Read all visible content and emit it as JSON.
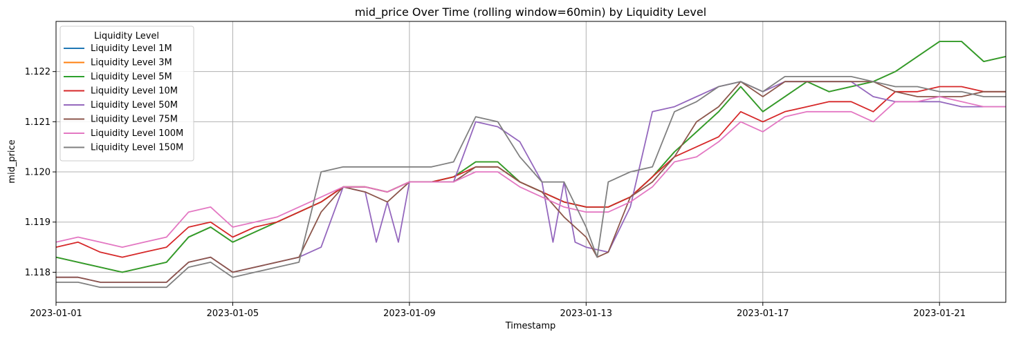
{
  "chart_data": {
    "type": "line",
    "title": "mid_price Over Time (rolling window=60min) by Liquidity Level",
    "xlabel": "Timestamp",
    "ylabel": "mid_price",
    "x_ticks": [
      "2023-01-01",
      "2023-01-05",
      "2023-01-09",
      "2023-01-13",
      "2023-01-17",
      "2023-01-21"
    ],
    "y_ticks": [
      "1.118",
      "1.119",
      "1.120",
      "1.121",
      "1.122"
    ],
    "xlim": [
      "2023-01-01 00:00",
      "2023-01-22 12:00"
    ],
    "ylim": [
      1.1174,
      1.123
    ],
    "grid": true,
    "legend": {
      "title": "Liquidity Level",
      "placement": "top-left"
    },
    "series": [
      {
        "name": "Liquidity Level 1M",
        "color": "#1f77b4",
        "x": [
          "2023-01-01 00:00",
          "2023-01-01 12:00",
          "2023-01-02 00:00",
          "2023-01-02 12:00",
          "2023-01-03 00:00",
          "2023-01-03 12:00",
          "2023-01-04 00:00",
          "2023-01-04 12:00",
          "2023-01-05 00:00",
          "2023-01-05 12:00",
          "2023-01-06 00:00",
          "2023-01-06 12:00",
          "2023-01-07 00:00",
          "2023-01-07 12:00",
          "2023-01-08 00:00",
          "2023-01-08 12:00",
          "2023-01-09 00:00",
          "2023-01-09 12:00",
          "2023-01-10 00:00",
          "2023-01-10 12:00",
          "2023-01-11 00:00",
          "2023-01-11 12:00",
          "2023-01-12 00:00",
          "2023-01-12 12:00",
          "2023-01-13 00:00",
          "2023-01-13 12:00",
          "2023-01-14 00:00",
          "2023-01-14 12:00",
          "2023-01-15 00:00",
          "2023-01-15 12:00",
          "2023-01-16 00:00",
          "2023-01-16 12:00",
          "2023-01-17 00:00",
          "2023-01-17 12:00",
          "2023-01-18 00:00",
          "2023-01-18 12:00",
          "2023-01-19 00:00",
          "2023-01-19 12:00",
          "2023-01-20 00:00",
          "2023-01-20 12:00",
          "2023-01-21 00:00",
          "2023-01-21 12:00",
          "2023-01-22 00:00",
          "2023-01-22 12:00"
        ],
        "y": [
          1.1183,
          1.1182,
          1.1181,
          1.118,
          1.1181,
          1.1182,
          1.1187,
          1.1189,
          1.1186,
          1.1188,
          1.119,
          1.1192,
          1.1194,
          1.1197,
          1.1197,
          1.1196,
          1.1198,
          1.1198,
          1.1199,
          1.1202,
          1.1202,
          1.1198,
          1.1196,
          1.1194,
          1.1193,
          1.1193,
          1.1195,
          1.1199,
          1.1204,
          1.1208,
          1.1212,
          1.1217,
          1.1212,
          1.1215,
          1.1218,
          1.1216,
          1.1217,
          1.1218,
          1.122,
          1.1223,
          1.1226,
          1.1226,
          1.1222,
          1.1223
        ]
      },
      {
        "name": "Liquidity Level 3M",
        "color": "#ff7f0e",
        "x": [
          "2023-01-01 00:00",
          "2023-01-01 12:00",
          "2023-01-02 00:00",
          "2023-01-02 12:00",
          "2023-01-03 00:00",
          "2023-01-03 12:00",
          "2023-01-04 00:00",
          "2023-01-04 12:00",
          "2023-01-05 00:00",
          "2023-01-05 12:00",
          "2023-01-06 00:00",
          "2023-01-06 12:00",
          "2023-01-07 00:00",
          "2023-01-07 12:00",
          "2023-01-08 00:00",
          "2023-01-08 12:00",
          "2023-01-09 00:00",
          "2023-01-09 12:00",
          "2023-01-10 00:00",
          "2023-01-10 12:00",
          "2023-01-11 00:00",
          "2023-01-11 12:00",
          "2023-01-12 00:00",
          "2023-01-12 12:00",
          "2023-01-13 00:00",
          "2023-01-13 12:00",
          "2023-01-14 00:00",
          "2023-01-14 12:00",
          "2023-01-15 00:00",
          "2023-01-15 12:00",
          "2023-01-16 00:00",
          "2023-01-16 12:00",
          "2023-01-17 00:00",
          "2023-01-17 12:00",
          "2023-01-18 00:00",
          "2023-01-18 12:00",
          "2023-01-19 00:00",
          "2023-01-19 12:00",
          "2023-01-20 00:00",
          "2023-01-20 12:00",
          "2023-01-21 00:00",
          "2023-01-21 12:00",
          "2023-01-22 00:00",
          "2023-01-22 12:00"
        ],
        "y": [
          1.1183,
          1.1182,
          1.1181,
          1.118,
          1.1181,
          1.1182,
          1.1187,
          1.1189,
          1.1186,
          1.1188,
          1.119,
          1.1192,
          1.1194,
          1.1197,
          1.1197,
          1.1196,
          1.1198,
          1.1198,
          1.1199,
          1.1202,
          1.1202,
          1.1198,
          1.1196,
          1.1194,
          1.1193,
          1.1193,
          1.1195,
          1.1199,
          1.1204,
          1.1208,
          1.1212,
          1.1217,
          1.1212,
          1.1215,
          1.1218,
          1.1216,
          1.1217,
          1.1218,
          1.122,
          1.1223,
          1.1226,
          1.1226,
          1.1222,
          1.1223
        ]
      },
      {
        "name": "Liquidity Level 5M",
        "color": "#2ca02c",
        "x": [
          "2023-01-01 00:00",
          "2023-01-01 12:00",
          "2023-01-02 00:00",
          "2023-01-02 12:00",
          "2023-01-03 00:00",
          "2023-01-03 12:00",
          "2023-01-04 00:00",
          "2023-01-04 12:00",
          "2023-01-05 00:00",
          "2023-01-05 12:00",
          "2023-01-06 00:00",
          "2023-01-06 12:00",
          "2023-01-07 00:00",
          "2023-01-07 12:00",
          "2023-01-08 00:00",
          "2023-01-08 12:00",
          "2023-01-09 00:00",
          "2023-01-09 12:00",
          "2023-01-10 00:00",
          "2023-01-10 12:00",
          "2023-01-11 00:00",
          "2023-01-11 12:00",
          "2023-01-12 00:00",
          "2023-01-12 12:00",
          "2023-01-13 00:00",
          "2023-01-13 12:00",
          "2023-01-14 00:00",
          "2023-01-14 12:00",
          "2023-01-15 00:00",
          "2023-01-15 12:00",
          "2023-01-16 00:00",
          "2023-01-16 12:00",
          "2023-01-17 00:00",
          "2023-01-17 12:00",
          "2023-01-18 00:00",
          "2023-01-18 12:00",
          "2023-01-19 00:00",
          "2023-01-19 12:00",
          "2023-01-20 00:00",
          "2023-01-20 12:00",
          "2023-01-21 00:00",
          "2023-01-21 12:00",
          "2023-01-22 00:00",
          "2023-01-22 12:00"
        ],
        "y": [
          1.1183,
          1.1182,
          1.1181,
          1.118,
          1.1181,
          1.1182,
          1.1187,
          1.1189,
          1.1186,
          1.1188,
          1.119,
          1.1192,
          1.1194,
          1.1197,
          1.1197,
          1.1196,
          1.1198,
          1.1198,
          1.1199,
          1.1202,
          1.1202,
          1.1198,
          1.1196,
          1.1194,
          1.1193,
          1.1193,
          1.1195,
          1.1199,
          1.1204,
          1.1208,
          1.1212,
          1.1217,
          1.1212,
          1.1215,
          1.1218,
          1.1216,
          1.1217,
          1.1218,
          1.122,
          1.1223,
          1.1226,
          1.1226,
          1.1222,
          1.1223
        ]
      },
      {
        "name": "Liquidity Level 10M",
        "color": "#d62728",
        "x": [
          "2023-01-01 00:00",
          "2023-01-01 12:00",
          "2023-01-02 00:00",
          "2023-01-02 12:00",
          "2023-01-03 00:00",
          "2023-01-03 12:00",
          "2023-01-04 00:00",
          "2023-01-04 12:00",
          "2023-01-05 00:00",
          "2023-01-05 12:00",
          "2023-01-06 00:00",
          "2023-01-06 12:00",
          "2023-01-07 00:00",
          "2023-01-07 12:00",
          "2023-01-08 00:00",
          "2023-01-08 12:00",
          "2023-01-09 00:00",
          "2023-01-09 12:00",
          "2023-01-10 00:00",
          "2023-01-10 12:00",
          "2023-01-11 00:00",
          "2023-01-11 12:00",
          "2023-01-12 00:00",
          "2023-01-12 12:00",
          "2023-01-13 00:00",
          "2023-01-13 12:00",
          "2023-01-14 00:00",
          "2023-01-14 12:00",
          "2023-01-15 00:00",
          "2023-01-15 12:00",
          "2023-01-16 00:00",
          "2023-01-16 12:00",
          "2023-01-17 00:00",
          "2023-01-17 12:00",
          "2023-01-18 00:00",
          "2023-01-18 12:00",
          "2023-01-19 00:00",
          "2023-01-19 12:00",
          "2023-01-20 00:00",
          "2023-01-20 12:00",
          "2023-01-21 00:00",
          "2023-01-21 12:00",
          "2023-01-22 00:00",
          "2023-01-22 12:00"
        ],
        "y": [
          1.1185,
          1.1186,
          1.1184,
          1.1183,
          1.1184,
          1.1185,
          1.1189,
          1.119,
          1.1187,
          1.1189,
          1.119,
          1.1192,
          1.1194,
          1.1197,
          1.1197,
          1.1196,
          1.1198,
          1.1198,
          1.1199,
          1.1201,
          1.1201,
          1.1198,
          1.1196,
          1.1194,
          1.1193,
          1.1193,
          1.1195,
          1.1199,
          1.1203,
          1.1205,
          1.1207,
          1.1212,
          1.121,
          1.1212,
          1.1213,
          1.1214,
          1.1214,
          1.1212,
          1.1216,
          1.1216,
          1.1217,
          1.1217,
          1.1216,
          1.1216
        ]
      },
      {
        "name": "Liquidity Level 50M",
        "color": "#9467bd",
        "x": [
          "2023-01-01 00:00",
          "2023-01-01 12:00",
          "2023-01-02 00:00",
          "2023-01-02 12:00",
          "2023-01-03 00:00",
          "2023-01-03 12:00",
          "2023-01-04 00:00",
          "2023-01-04 12:00",
          "2023-01-05 00:00",
          "2023-01-05 12:00",
          "2023-01-06 00:00",
          "2023-01-06 12:00",
          "2023-01-07 00:00",
          "2023-01-07 12:00",
          "2023-01-08 00:00",
          "2023-01-08 06:00",
          "2023-01-08 12:00",
          "2023-01-08 18:00",
          "2023-01-09 00:00",
          "2023-01-09 12:00",
          "2023-01-10 00:00",
          "2023-01-10 12:00",
          "2023-01-11 00:00",
          "2023-01-11 12:00",
          "2023-01-12 00:00",
          "2023-01-12 06:00",
          "2023-01-12 12:00",
          "2023-01-12 18:00",
          "2023-01-13 00:00",
          "2023-01-13 12:00",
          "2023-01-14 00:00",
          "2023-01-14 12:00",
          "2023-01-15 00:00",
          "2023-01-15 12:00",
          "2023-01-16 00:00",
          "2023-01-16 12:00",
          "2023-01-17 00:00",
          "2023-01-17 12:00",
          "2023-01-18 00:00",
          "2023-01-18 12:00",
          "2023-01-19 00:00",
          "2023-01-19 12:00",
          "2023-01-20 00:00",
          "2023-01-20 12:00",
          "2023-01-21 00:00",
          "2023-01-21 12:00",
          "2023-01-22 00:00",
          "2023-01-22 12:00"
        ],
        "y": [
          1.1179,
          1.1179,
          1.1178,
          1.1178,
          1.1178,
          1.1178,
          1.1182,
          1.1183,
          1.118,
          1.1181,
          1.1182,
          1.1183,
          1.1185,
          1.1197,
          1.1196,
          1.1186,
          1.1194,
          1.1186,
          1.1198,
          1.1198,
          1.1198,
          1.121,
          1.1209,
          1.1206,
          1.1198,
          1.1186,
          1.1198,
          1.1186,
          1.1185,
          1.1184,
          1.1193,
          1.1212,
          1.1213,
          1.1215,
          1.1217,
          1.1218,
          1.1216,
          1.1218,
          1.1218,
          1.1218,
          1.1218,
          1.1215,
          1.1214,
          1.1214,
          1.1214,
          1.1213,
          1.1213,
          1.1213
        ]
      },
      {
        "name": "Liquidity Level 75M",
        "color": "#8c564b",
        "x": [
          "2023-01-01 00:00",
          "2023-01-01 12:00",
          "2023-01-02 00:00",
          "2023-01-02 12:00",
          "2023-01-03 00:00",
          "2023-01-03 12:00",
          "2023-01-04 00:00",
          "2023-01-04 12:00",
          "2023-01-05 00:00",
          "2023-01-05 12:00",
          "2023-01-06 00:00",
          "2023-01-06 12:00",
          "2023-01-07 00:00",
          "2023-01-07 12:00",
          "2023-01-08 00:00",
          "2023-01-08 12:00",
          "2023-01-09 00:00",
          "2023-01-09 12:00",
          "2023-01-10 00:00",
          "2023-01-10 12:00",
          "2023-01-11 00:00",
          "2023-01-11 12:00",
          "2023-01-12 00:00",
          "2023-01-12 12:00",
          "2023-01-13 00:00",
          "2023-01-13 06:00",
          "2023-01-13 12:00",
          "2023-01-14 00:00",
          "2023-01-14 12:00",
          "2023-01-15 00:00",
          "2023-01-15 12:00",
          "2023-01-16 00:00",
          "2023-01-16 12:00",
          "2023-01-17 00:00",
          "2023-01-17 12:00",
          "2023-01-18 00:00",
          "2023-01-18 12:00",
          "2023-01-19 00:00",
          "2023-01-19 12:00",
          "2023-01-20 00:00",
          "2023-01-20 12:00",
          "2023-01-21 00:00",
          "2023-01-21 12:00",
          "2023-01-22 00:00",
          "2023-01-22 12:00"
        ],
        "y": [
          1.1179,
          1.1179,
          1.1178,
          1.1178,
          1.1178,
          1.1178,
          1.1182,
          1.1183,
          1.118,
          1.1181,
          1.1182,
          1.1183,
          1.1192,
          1.1197,
          1.1196,
          1.1194,
          1.1198,
          1.1198,
          1.1198,
          1.1201,
          1.1201,
          1.1198,
          1.1196,
          1.1191,
          1.1187,
          1.1183,
          1.1184,
          1.1195,
          1.1198,
          1.1203,
          1.121,
          1.1213,
          1.1218,
          1.1215,
          1.1218,
          1.1218,
          1.1218,
          1.1218,
          1.1218,
          1.1216,
          1.1215,
          1.1215,
          1.1215,
          1.1216,
          1.1216
        ]
      },
      {
        "name": "Liquidity Level 100M",
        "color": "#e377c2",
        "x": [
          "2023-01-01 00:00",
          "2023-01-01 12:00",
          "2023-01-02 00:00",
          "2023-01-02 12:00",
          "2023-01-03 00:00",
          "2023-01-03 12:00",
          "2023-01-04 00:00",
          "2023-01-04 12:00",
          "2023-01-05 00:00",
          "2023-01-05 12:00",
          "2023-01-06 00:00",
          "2023-01-06 12:00",
          "2023-01-07 00:00",
          "2023-01-07 12:00",
          "2023-01-08 00:00",
          "2023-01-08 12:00",
          "2023-01-09 00:00",
          "2023-01-09 12:00",
          "2023-01-10 00:00",
          "2023-01-10 12:00",
          "2023-01-11 00:00",
          "2023-01-11 12:00",
          "2023-01-12 00:00",
          "2023-01-12 12:00",
          "2023-01-13 00:00",
          "2023-01-13 12:00",
          "2023-01-14 00:00",
          "2023-01-14 12:00",
          "2023-01-15 00:00",
          "2023-01-15 12:00",
          "2023-01-16 00:00",
          "2023-01-16 12:00",
          "2023-01-17 00:00",
          "2023-01-17 12:00",
          "2023-01-18 00:00",
          "2023-01-18 12:00",
          "2023-01-19 00:00",
          "2023-01-19 12:00",
          "2023-01-20 00:00",
          "2023-01-20 12:00",
          "2023-01-21 00:00",
          "2023-01-21 12:00",
          "2023-01-22 00:00",
          "2023-01-22 12:00"
        ],
        "y": [
          1.1186,
          1.1187,
          1.1186,
          1.1185,
          1.1186,
          1.1187,
          1.1192,
          1.1193,
          1.1189,
          1.119,
          1.1191,
          1.1193,
          1.1195,
          1.1197,
          1.1197,
          1.1196,
          1.1198,
          1.1198,
          1.1198,
          1.12,
          1.12,
          1.1197,
          1.1195,
          1.1193,
          1.1192,
          1.1192,
          1.1194,
          1.1197,
          1.1202,
          1.1203,
          1.1206,
          1.121,
          1.1208,
          1.1211,
          1.1212,
          1.1212,
          1.1212,
          1.121,
          1.1214,
          1.1214,
          1.1215,
          1.1214,
          1.1213,
          1.1213
        ]
      },
      {
        "name": "Liquidity Level 150M",
        "color": "#7f7f7f",
        "x": [
          "2023-01-01 00:00",
          "2023-01-01 12:00",
          "2023-01-02 00:00",
          "2023-01-02 12:00",
          "2023-01-03 00:00",
          "2023-01-03 12:00",
          "2023-01-04 00:00",
          "2023-01-04 12:00",
          "2023-01-05 00:00",
          "2023-01-05 12:00",
          "2023-01-06 00:00",
          "2023-01-06 12:00",
          "2023-01-07 00:00",
          "2023-01-07 12:00",
          "2023-01-08 00:00",
          "2023-01-08 12:00",
          "2023-01-09 00:00",
          "2023-01-09 12:00",
          "2023-01-10 00:00",
          "2023-01-10 12:00",
          "2023-01-11 00:00",
          "2023-01-11 12:00",
          "2023-01-12 00:00",
          "2023-01-12 12:00",
          "2023-01-13 00:00",
          "2023-01-13 06:00",
          "2023-01-13 12:00",
          "2023-01-14 00:00",
          "2023-01-14 12:00",
          "2023-01-15 00:00",
          "2023-01-15 12:00",
          "2023-01-16 00:00",
          "2023-01-16 12:00",
          "2023-01-17 00:00",
          "2023-01-17 12:00",
          "2023-01-18 00:00",
          "2023-01-18 12:00",
          "2023-01-19 00:00",
          "2023-01-19 12:00",
          "2023-01-20 00:00",
          "2023-01-20 12:00",
          "2023-01-21 00:00",
          "2023-01-21 12:00",
          "2023-01-22 00:00",
          "2023-01-22 12:00"
        ],
        "y": [
          1.1178,
          1.1178,
          1.1177,
          1.1177,
          1.1177,
          1.1177,
          1.1181,
          1.1182,
          1.1179,
          1.118,
          1.1181,
          1.1182,
          1.12,
          1.1201,
          1.1201,
          1.1201,
          1.1201,
          1.1201,
          1.1202,
          1.1211,
          1.121,
          1.1203,
          1.1198,
          1.1198,
          1.1189,
          1.1183,
          1.1198,
          1.12,
          1.1201,
          1.1212,
          1.1214,
          1.1217,
          1.1218,
          1.1216,
          1.1219,
          1.1219,
          1.1219,
          1.1219,
          1.1218,
          1.1217,
          1.1217,
          1.1216,
          1.1216,
          1.1215,
          1.1215
        ]
      }
    ]
  }
}
